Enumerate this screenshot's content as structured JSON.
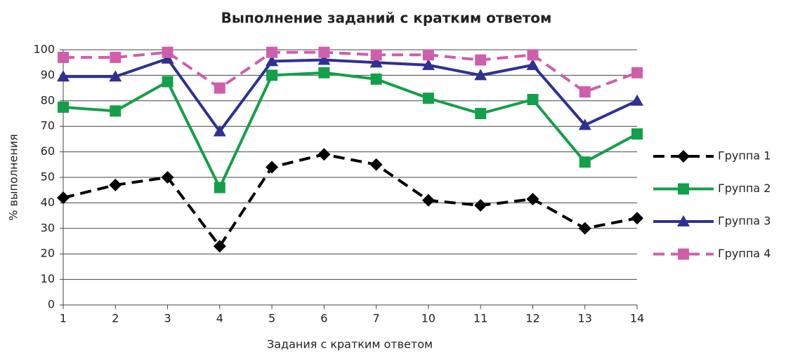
{
  "chart_data": {
    "type": "line",
    "title": "Выполнение заданий с кратким ответом",
    "x_label": "Задания с кратким ответом",
    "y_label": "% выполнения",
    "categories": [
      "1",
      "2",
      "3",
      "4",
      "5",
      "6",
      "7",
      "10",
      "11",
      "12",
      "13",
      "14"
    ],
    "series": [
      {
        "name": "Группа 1",
        "color": "#000000",
        "marker": "diamond",
        "dashed": true,
        "values": [
          42,
          47,
          50,
          23,
          54,
          59,
          55,
          41,
          39,
          41.5,
          30,
          34
        ]
      },
      {
        "name": "Группа 2",
        "color": "#13a048",
        "marker": "square",
        "dashed": false,
        "values": [
          77.5,
          76,
          87.5,
          46,
          90,
          91,
          88.5,
          81,
          75,
          80.5,
          56,
          67
        ]
      },
      {
        "name": "Группа 3",
        "color": "#2e3192",
        "marker": "triangle",
        "dashed": false,
        "values": [
          89.5,
          89.5,
          96.5,
          68,
          95.5,
          96,
          95,
          94,
          90,
          94,
          70.5,
          80
        ]
      },
      {
        "name": "Группа 4",
        "color": "#cf5fac",
        "marker": "square",
        "dashed": true,
        "values": [
          97,
          97,
          99,
          85,
          99,
          99,
          98,
          98,
          96,
          98,
          83.5,
          91
        ]
      }
    ],
    "ylim": [
      0,
      100
    ],
    "yticks": [
      0,
      10,
      20,
      30,
      40,
      50,
      60,
      70,
      80,
      90,
      100
    ],
    "grid": true,
    "legend": "right"
  }
}
